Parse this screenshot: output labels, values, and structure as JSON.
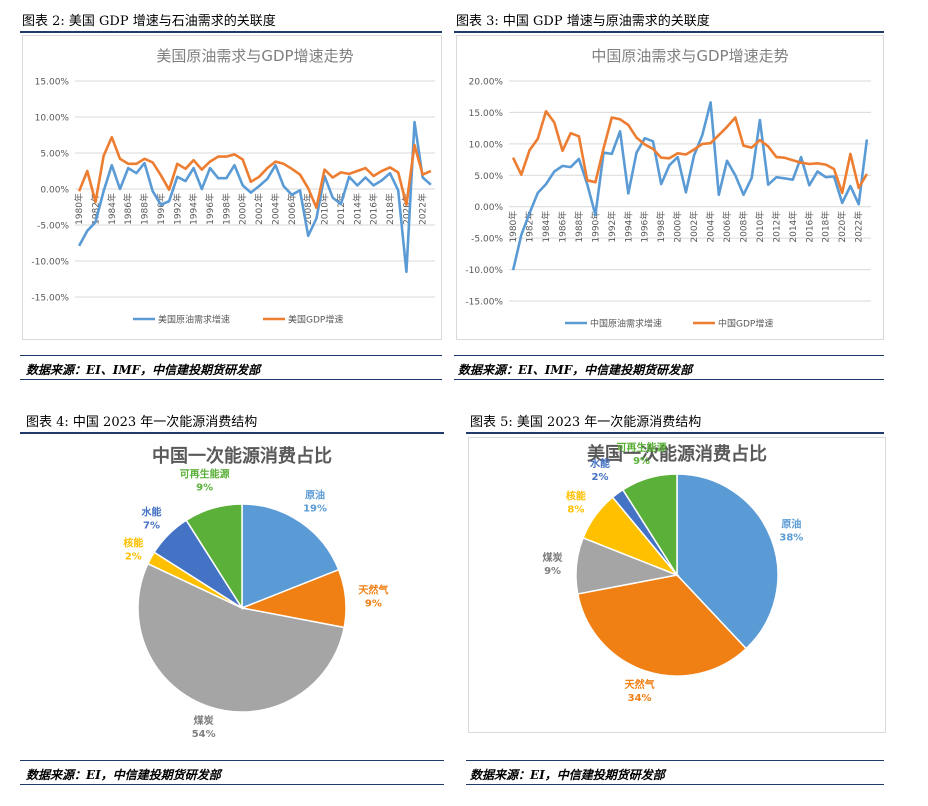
{
  "figures": [
    {
      "title": "图表 2:  美国  GDP  增速与石油需求的关联度",
      "source": "数据来源：EI、IMF，中信建投期货研发部"
    },
    {
      "title": "图表 3:  中国  GDP  增速与原油需求的关联度",
      "source": "数据来源：EI、IMF，中信建投期货研发部"
    },
    {
      "title": "图表 4:  中国  2023  年一次能源消费结构",
      "source": "数据来源：EI，中信建投期货研发部"
    },
    {
      "title": "图表 5:  美国  2023  年一次能源消费结构",
      "source": "数据来源：EI，中信建投期货研发部"
    }
  ],
  "colors": {
    "blue": "#5b9bd5",
    "orange": "#ed7d31",
    "grid": "#d9d9d9",
    "axis_text": "#595959"
  },
  "chart_data": [
    {
      "type": "line",
      "title": "美国原油需求与GDP增速走势",
      "ylim": [
        -15,
        15
      ],
      "yticks": [
        "15.00%",
        "10.00%",
        "5.00%",
        "0.00%",
        "-5.00%",
        "-10.00%",
        "-15.00%"
      ],
      "x": [
        1980,
        1981,
        1982,
        1983,
        1984,
        1985,
        1986,
        1987,
        1988,
        1989,
        1990,
        1991,
        1992,
        1993,
        1994,
        1995,
        1996,
        1997,
        1998,
        1999,
        2000,
        2001,
        2002,
        2003,
        2004,
        2005,
        2006,
        2007,
        2008,
        2009,
        2010,
        2011,
        2012,
        2013,
        2014,
        2015,
        2016,
        2017,
        2018,
        2019,
        2020,
        2021,
        2022,
        2023
      ],
      "xtick_labels": [
        "1980年",
        "1982年",
        "1984年",
        "1986年",
        "1988年",
        "1990年",
        "1992年",
        "1994年",
        "1996年",
        "1998年",
        "2000年",
        "2002年",
        "2004年",
        "2006年",
        "2008年",
        "2010年",
        "2012年",
        "2014年",
        "2016年",
        "2018年",
        "2020年",
        "2022年"
      ],
      "series": [
        {
          "name": "美国原油需求增速",
          "color": "#5b9bd5",
          "values": [
            -7.9,
            -5.8,
            -4.6,
            -0.3,
            3.3,
            0.0,
            2.9,
            2.2,
            3.6,
            -0.3,
            -2.2,
            -1.7,
            1.7,
            1.1,
            2.9,
            0.0,
            2.9,
            1.5,
            1.5,
            3.3,
            0.5,
            -0.5,
            0.4,
            1.4,
            3.3,
            0.4,
            -0.8,
            -0.2,
            -6.5,
            -4.1,
            1.8,
            -1.2,
            -2.1,
            1.7,
            0.5,
            1.6,
            0.5,
            1.2,
            2.2,
            -0.2,
            -11.5,
            9.3,
            1.6,
            0.6
          ]
        },
        {
          "name": "美国GDP增速",
          "color": "#ed7d31",
          "values": [
            -0.3,
            2.5,
            -1.8,
            4.6,
            7.2,
            4.2,
            3.5,
            3.5,
            4.2,
            3.7,
            1.9,
            -0.1,
            3.5,
            2.8,
            4.0,
            2.7,
            3.8,
            4.5,
            4.5,
            4.8,
            4.1,
            1.0,
            1.7,
            2.9,
            3.8,
            3.5,
            2.8,
            2.0,
            0.1,
            -2.6,
            2.7,
            1.6,
            2.3,
            2.1,
            2.5,
            2.9,
            1.8,
            2.5,
            3.0,
            2.3,
            -2.2,
            6.1,
            2.0,
            2.5
          ]
        }
      ]
    },
    {
      "type": "line",
      "title": "中国原油需求与GDP增速走势",
      "ylim": [
        -15,
        20
      ],
      "yticks": [
        "20.00%",
        "15.00%",
        "10.00%",
        "5.00%",
        "0.00%",
        "-5.00%",
        "-10.00%",
        "-15.00%"
      ],
      "x": [
        1980,
        1981,
        1982,
        1983,
        1984,
        1985,
        1986,
        1987,
        1988,
        1989,
        1990,
        1991,
        1992,
        1993,
        1994,
        1995,
        1996,
        1997,
        1998,
        1999,
        2000,
        2001,
        2002,
        2003,
        2004,
        2005,
        2006,
        2007,
        2008,
        2009,
        2010,
        2011,
        2012,
        2013,
        2014,
        2015,
        2016,
        2017,
        2018,
        2019,
        2020,
        2021,
        2022,
        2023
      ],
      "xtick_labels": [
        "1980年",
        "1982年",
        "1984年",
        "1986年",
        "1988年",
        "1990年",
        "1992年",
        "1994年",
        "1996年",
        "1998年",
        "2000年",
        "2002年",
        "2004年",
        "2006年",
        "2008年",
        "2010年",
        "2012年",
        "2014年",
        "2016年",
        "2018年",
        "2020年",
        "2022年"
      ],
      "series": [
        {
          "name": "中国原油需求增速",
          "color": "#5b9bd5",
          "values": [
            -10.1,
            -4.5,
            -1.0,
            2.2,
            3.6,
            5.6,
            6.5,
            6.3,
            7.6,
            3.6,
            -1.3,
            8.6,
            8.4,
            12.0,
            2.1,
            8.6,
            10.9,
            10.4,
            3.6,
            6.6,
            7.9,
            2.3,
            8.2,
            11.4,
            16.6,
            1.9,
            7.3,
            5.0,
            1.9,
            4.6,
            13.8,
            3.5,
            4.7,
            4.5,
            4.3,
            7.9,
            3.4,
            5.6,
            4.7,
            4.8,
            0.6,
            3.3,
            0.4,
            10.7
          ]
        },
        {
          "name": "中国GDP增速",
          "color": "#ed7d31",
          "values": [
            7.8,
            5.1,
            9.0,
            10.8,
            15.2,
            13.4,
            8.9,
            11.7,
            11.2,
            4.2,
            3.9,
            9.3,
            14.2,
            13.9,
            13.0,
            11.0,
            9.9,
            9.2,
            7.8,
            7.7,
            8.5,
            8.3,
            9.1,
            10.0,
            10.1,
            11.4,
            12.7,
            14.2,
            9.7,
            9.4,
            10.6,
            9.6,
            7.9,
            7.8,
            7.4,
            7.0,
            6.8,
            6.9,
            6.7,
            6.0,
            2.2,
            8.4,
            3.0,
            5.2
          ]
        }
      ]
    },
    {
      "type": "pie",
      "title": "中国一次能源消费占比",
      "slices": [
        {
          "label": "原油",
          "value": 19,
          "pct": "19%",
          "color": "#5b9bd5"
        },
        {
          "label": "天然气",
          "value": 9,
          "pct": "9%",
          "color": "#f07f14"
        },
        {
          "label": "煤炭",
          "value": 54,
          "pct": "54%",
          "color": "#a5a5a5"
        },
        {
          "label": "核能",
          "value": 2,
          "pct": "2%",
          "color": "#ffc000"
        },
        {
          "label": "水能",
          "value": 7,
          "pct": "7%",
          "color": "#4472c4"
        },
        {
          "label": "可再生能源",
          "value": 9,
          "pct": "9%",
          "color": "#5bb03a"
        }
      ]
    },
    {
      "type": "pie",
      "title": "美国一次能源消费占比",
      "slices": [
        {
          "label": "原油",
          "value": 38,
          "pct": "38%",
          "color": "#5b9bd5"
        },
        {
          "label": "天然气",
          "value": 34,
          "pct": "34%",
          "color": "#f07f14"
        },
        {
          "label": "煤炭",
          "value": 9,
          "pct": "9%",
          "color": "#a5a5a5"
        },
        {
          "label": "核能",
          "value": 8,
          "pct": "8%",
          "color": "#ffc000"
        },
        {
          "label": "水能",
          "value": 2,
          "pct": "2%",
          "color": "#4472c4"
        },
        {
          "label": "可再生能源",
          "value": 9,
          "pct": "9%",
          "color": "#5bb03a"
        }
      ]
    }
  ]
}
